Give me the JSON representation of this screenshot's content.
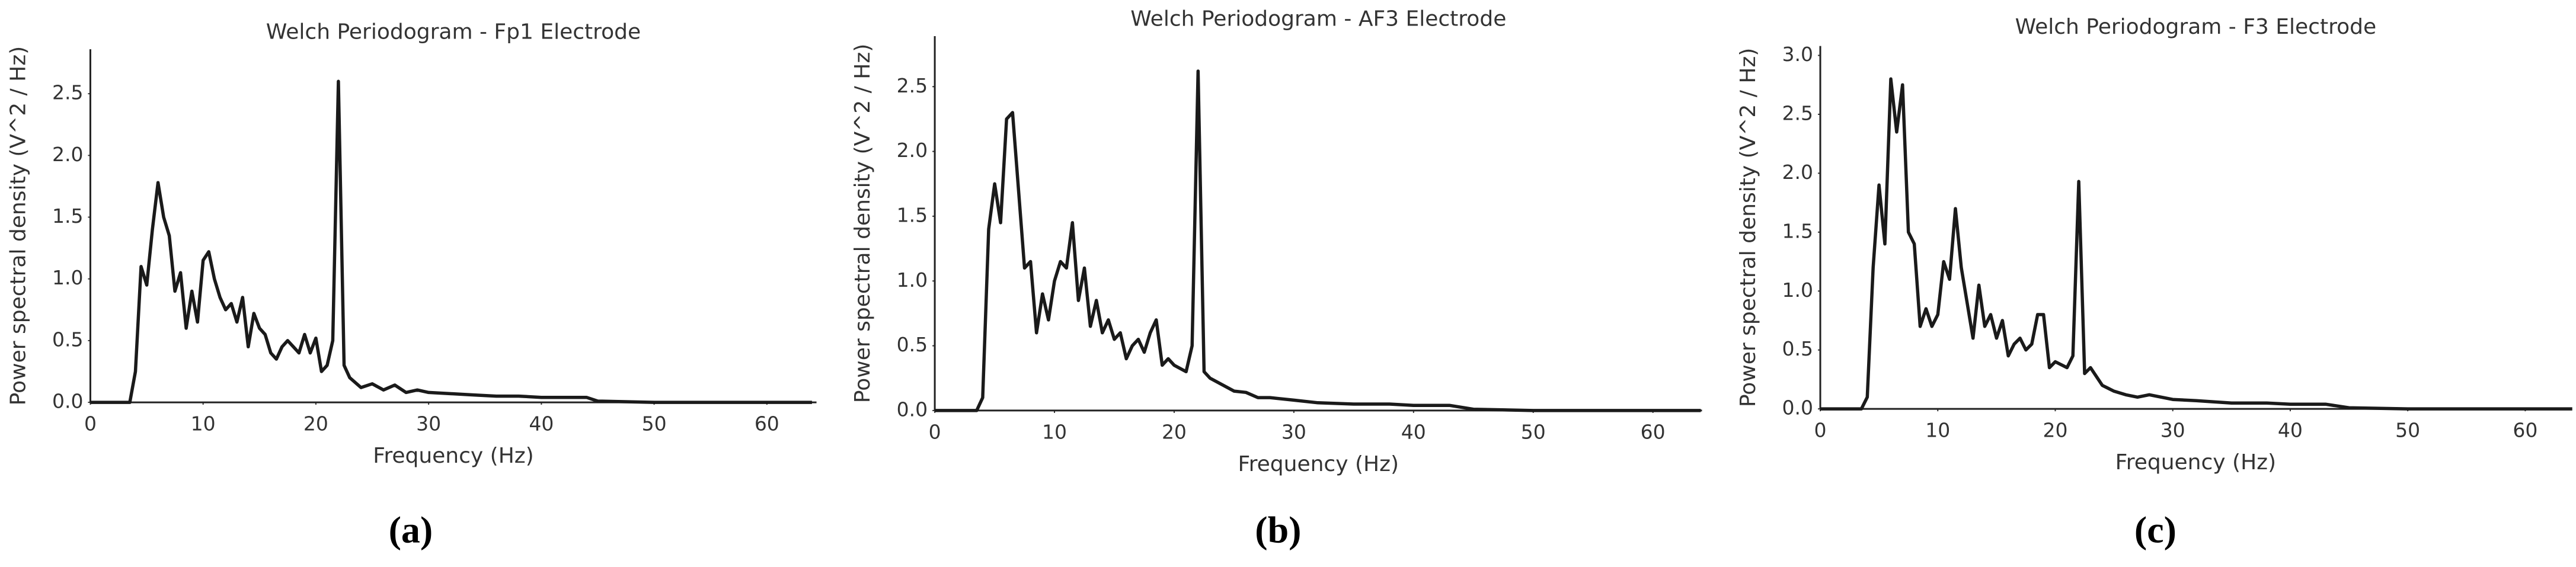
{
  "chart_data": [
    {
      "type": "line",
      "title": "Welch Periodogram - Fp1 Electrode",
      "xlabel": "Frequency (Hz)",
      "ylabel": "Power spectral density (V^2 / Hz)",
      "caption": "(a)",
      "color": "#1a1a1a",
      "x": [
        0,
        3.5,
        4,
        4.5,
        5,
        5.5,
        6,
        6.5,
        7,
        7.5,
        8,
        8.5,
        9,
        9.5,
        10,
        10.5,
        11,
        11.5,
        12,
        12.5,
        13,
        13.5,
        14,
        14.5,
        15,
        15.5,
        16,
        16.5,
        17,
        17.5,
        18,
        18.5,
        19,
        19.5,
        20,
        20.5,
        21,
        21.5,
        22,
        22.5,
        23,
        24,
        25,
        26,
        27,
        28,
        29,
        30,
        32,
        34,
        36,
        38,
        40,
        42,
        44,
        45,
        50,
        64
      ],
      "values": [
        0,
        0,
        0.25,
        1.1,
        0.95,
        1.4,
        1.78,
        1.5,
        1.35,
        0.9,
        1.05,
        0.6,
        0.9,
        0.65,
        1.15,
        1.22,
        1.0,
        0.85,
        0.75,
        0.8,
        0.65,
        0.85,
        0.45,
        0.72,
        0.6,
        0.55,
        0.4,
        0.35,
        0.45,
        0.5,
        0.45,
        0.4,
        0.55,
        0.4,
        0.52,
        0.25,
        0.3,
        0.5,
        2.6,
        0.3,
        0.2,
        0.12,
        0.15,
        0.1,
        0.14,
        0.08,
        0.1,
        0.08,
        0.07,
        0.06,
        0.05,
        0.05,
        0.04,
        0.04,
        0.04,
        0.01,
        0,
        0
      ],
      "xlim": [
        0,
        64.4
      ],
      "ylim": [
        0,
        2.86
      ],
      "xticks": [
        0,
        10,
        20,
        30,
        40,
        50,
        60
      ],
      "yticks": [
        {
          "value": 0,
          "label": "0.0"
        },
        0.5,
        {
          "value": 1,
          "label": "1.0"
        },
        1.5,
        {
          "value": 2,
          "label": "2.0"
        },
        2.5
      ]
    },
    {
      "type": "line",
      "title": "Welch Periodogram - AF3 Electrode",
      "xlabel": "Frequency (Hz)",
      "ylabel": "Power spectral density (V^2 / Hz)",
      "caption": "(b)",
      "color": "#1a1a1a",
      "x": [
        0,
        3.5,
        4,
        4.5,
        5,
        5.5,
        6,
        6.5,
        7,
        7.5,
        8,
        8.5,
        9,
        9.5,
        10,
        10.5,
        11,
        11.5,
        12,
        12.5,
        13,
        13.5,
        14,
        14.5,
        15,
        15.5,
        16,
        16.5,
        17,
        17.5,
        18,
        18.5,
        19,
        19.5,
        20,
        21,
        21.5,
        22,
        22.5,
        23,
        24,
        25,
        26,
        27,
        28,
        30,
        32,
        35,
        38,
        40,
        43,
        45,
        50,
        64
      ],
      "values": [
        0,
        0,
        0.1,
        1.4,
        1.75,
        1.45,
        2.25,
        2.3,
        1.7,
        1.1,
        1.15,
        0.6,
        0.9,
        0.7,
        1.0,
        1.15,
        1.1,
        1.45,
        0.85,
        1.1,
        0.65,
        0.85,
        0.6,
        0.7,
        0.55,
        0.6,
        0.4,
        0.5,
        0.55,
        0.45,
        0.6,
        0.7,
        0.35,
        0.4,
        0.35,
        0.3,
        0.5,
        2.62,
        0.3,
        0.25,
        0.2,
        0.15,
        0.14,
        0.1,
        0.1,
        0.08,
        0.06,
        0.05,
        0.05,
        0.04,
        0.04,
        0.01,
        0,
        0
      ],
      "xlim": [
        0,
        64.1
      ],
      "ylim": [
        0,
        2.89
      ],
      "xticks": [
        0,
        10,
        20,
        30,
        40,
        50,
        60
      ],
      "yticks": [
        {
          "value": 0,
          "label": "0.0"
        },
        0.5,
        {
          "value": 1,
          "label": "1.0"
        },
        1.5,
        {
          "value": 2,
          "label": "2.0"
        },
        2.5
      ]
    },
    {
      "type": "line",
      "title": "Welch Periodogram - F3 Electrode",
      "xlabel": "Frequency (Hz)",
      "ylabel": "Power spectral density (V^2 / Hz)",
      "caption": "(c)",
      "color": "#1a1a1a",
      "x": [
        0,
        3.5,
        4,
        4.5,
        5,
        5.5,
        6,
        6.5,
        7,
        7.5,
        8,
        8.5,
        9,
        9.5,
        10,
        10.5,
        11,
        11.5,
        12,
        12.5,
        13,
        13.5,
        14,
        14.5,
        15,
        15.5,
        16,
        16.5,
        17,
        17.5,
        18,
        18.5,
        19,
        19.5,
        20,
        21,
        21.5,
        22,
        22.5,
        23,
        24,
        25,
        26,
        27,
        28,
        30,
        32,
        35,
        38,
        40,
        43,
        45,
        50,
        64
      ],
      "values": [
        0,
        0,
        0.1,
        1.2,
        1.9,
        1.4,
        2.8,
        2.35,
        2.75,
        1.5,
        1.4,
        0.7,
        0.85,
        0.7,
        0.8,
        1.25,
        1.1,
        1.7,
        1.2,
        0.9,
        0.6,
        1.05,
        0.7,
        0.8,
        0.6,
        0.75,
        0.45,
        0.55,
        0.6,
        0.5,
        0.55,
        0.8,
        0.8,
        0.35,
        0.4,
        0.35,
        0.45,
        1.93,
        0.3,
        0.35,
        0.2,
        0.15,
        0.12,
        0.1,
        0.12,
        0.08,
        0.07,
        0.05,
        0.05,
        0.04,
        0.04,
        0.01,
        0,
        0
      ],
      "xlim": [
        0,
        63.9
      ],
      "ylim": [
        0,
        3.08
      ],
      "xticks": [
        0,
        10,
        20,
        30,
        40,
        50,
        60
      ],
      "yticks": [
        {
          "value": 0,
          "label": "0.0"
        },
        0.5,
        {
          "value": 1,
          "label": "1.0"
        },
        1.5,
        {
          "value": 2,
          "label": "2.0"
        },
        2.5,
        {
          "value": 3,
          "label": "3.0"
        }
      ]
    }
  ]
}
